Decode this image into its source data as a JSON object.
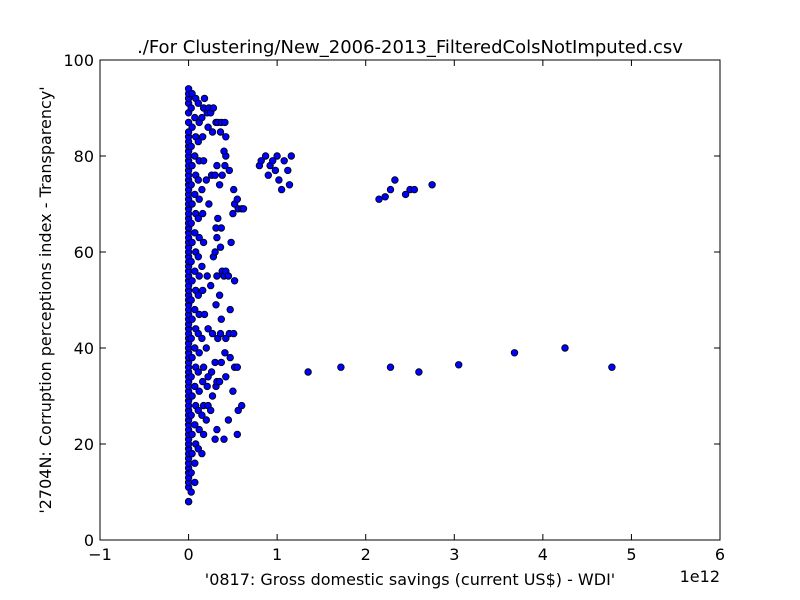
{
  "chart_data": {
    "type": "scatter",
    "title": "./For Clustering/New_2006-2013_FilteredColsNotImputed.csv",
    "xlabel": "'0817: Gross domestic savings  (current US$) - WDI'",
    "ylabel": "'2704N: Corruption perceptions index - Transparency'",
    "x_offset_label": "1e12",
    "xlim": [
      -1,
      6
    ],
    "ylim": [
      0,
      100
    ],
    "x_ticks": [
      -1,
      0,
      1,
      2,
      3,
      4,
      5,
      6
    ],
    "x_tick_labels": [
      "−1",
      "0",
      "1",
      "2",
      "3",
      "4",
      "5",
      "6"
    ],
    "y_ticks": [
      0,
      20,
      40,
      60,
      80,
      100
    ],
    "y_tick_labels": [
      "0",
      "20",
      "40",
      "60",
      "80",
      "100"
    ],
    "grid": false,
    "marker_color": "#0000ff",
    "marker_edge": "#000000",
    "points": [
      [
        0.0,
        8
      ],
      [
        0.0,
        8
      ],
      [
        0.0,
        11
      ],
      [
        0.0,
        12
      ],
      [
        0.0,
        13
      ],
      [
        0.0,
        14
      ],
      [
        0.0,
        15
      ],
      [
        0.0,
        16
      ],
      [
        0.0,
        17
      ],
      [
        0.0,
        18
      ],
      [
        0.0,
        19
      ],
      [
        0.0,
        20
      ],
      [
        0.0,
        21
      ],
      [
        0.0,
        22
      ],
      [
        0.0,
        23
      ],
      [
        0.0,
        24
      ],
      [
        0.0,
        25
      ],
      [
        0.0,
        26
      ],
      [
        0.0,
        27
      ],
      [
        0.0,
        28
      ],
      [
        0.0,
        29
      ],
      [
        0.0,
        30
      ],
      [
        0.0,
        31
      ],
      [
        0.0,
        32
      ],
      [
        0.0,
        33
      ],
      [
        0.0,
        34
      ],
      [
        0.0,
        35
      ],
      [
        0.0,
        36
      ],
      [
        0.0,
        37
      ],
      [
        0.0,
        38
      ],
      [
        0.0,
        39
      ],
      [
        0.0,
        40
      ],
      [
        0.0,
        41
      ],
      [
        0.0,
        42
      ],
      [
        0.0,
        43
      ],
      [
        0.0,
        44
      ],
      [
        0.0,
        45
      ],
      [
        0.0,
        46
      ],
      [
        0.0,
        47
      ],
      [
        0.0,
        48
      ],
      [
        0.0,
        49
      ],
      [
        0.0,
        50
      ],
      [
        0.0,
        51
      ],
      [
        0.0,
        52
      ],
      [
        0.0,
        53
      ],
      [
        0.0,
        54
      ],
      [
        0.0,
        55
      ],
      [
        0.0,
        56
      ],
      [
        0.0,
        57
      ],
      [
        0.0,
        58
      ],
      [
        0.0,
        59
      ],
      [
        0.0,
        60
      ],
      [
        0.0,
        61
      ],
      [
        0.0,
        62
      ],
      [
        0.0,
        63
      ],
      [
        0.0,
        64
      ],
      [
        0.0,
        65
      ],
      [
        0.0,
        66
      ],
      [
        0.0,
        67
      ],
      [
        0.0,
        68
      ],
      [
        0.0,
        69
      ],
      [
        0.0,
        70
      ],
      [
        0.0,
        71
      ],
      [
        0.0,
        72
      ],
      [
        0.0,
        73
      ],
      [
        0.0,
        74
      ],
      [
        0.0,
        75
      ],
      [
        0.0,
        76
      ],
      [
        0.0,
        77
      ],
      [
        0.0,
        78
      ],
      [
        0.0,
        79
      ],
      [
        0.0,
        80
      ],
      [
        0.0,
        81
      ],
      [
        0.0,
        82
      ],
      [
        0.0,
        83
      ],
      [
        0.0,
        84
      ],
      [
        0.0,
        85
      ],
      [
        0.0,
        87
      ],
      [
        0.0,
        89
      ],
      [
        0.0,
        91
      ],
      [
        0.0,
        92
      ],
      [
        0.0,
        93
      ],
      [
        0.0,
        94
      ],
      [
        0.03,
        10
      ],
      [
        0.03,
        14
      ],
      [
        0.04,
        18
      ],
      [
        0.04,
        22
      ],
      [
        0.03,
        26
      ],
      [
        0.04,
        30
      ],
      [
        0.03,
        34
      ],
      [
        0.04,
        38
      ],
      [
        0.03,
        42
      ],
      [
        0.04,
        46
      ],
      [
        0.03,
        50
      ],
      [
        0.04,
        54
      ],
      [
        0.03,
        58
      ],
      [
        0.04,
        62
      ],
      [
        0.03,
        66
      ],
      [
        0.04,
        70
      ],
      [
        0.03,
        74
      ],
      [
        0.04,
        78
      ],
      [
        0.03,
        82
      ],
      [
        0.04,
        86
      ],
      [
        0.03,
        90
      ],
      [
        0.04,
        93
      ],
      [
        0.07,
        12
      ],
      [
        0.07,
        16
      ],
      [
        0.08,
        20
      ],
      [
        0.07,
        24
      ],
      [
        0.08,
        28
      ],
      [
        0.07,
        32
      ],
      [
        0.08,
        36
      ],
      [
        0.07,
        40
      ],
      [
        0.08,
        44
      ],
      [
        0.07,
        48
      ],
      [
        0.08,
        52
      ],
      [
        0.07,
        56
      ],
      [
        0.08,
        60
      ],
      [
        0.07,
        64
      ],
      [
        0.08,
        68
      ],
      [
        0.07,
        72
      ],
      [
        0.08,
        76
      ],
      [
        0.07,
        80
      ],
      [
        0.08,
        84
      ],
      [
        0.07,
        88
      ],
      [
        0.08,
        92
      ],
      [
        0.11,
        19
      ],
      [
        0.12,
        23
      ],
      [
        0.11,
        27
      ],
      [
        0.12,
        31
      ],
      [
        0.11,
        35
      ],
      [
        0.12,
        39
      ],
      [
        0.11,
        43
      ],
      [
        0.12,
        47
      ],
      [
        0.11,
        51
      ],
      [
        0.12,
        55
      ],
      [
        0.11,
        59
      ],
      [
        0.12,
        63
      ],
      [
        0.11,
        67
      ],
      [
        0.12,
        71
      ],
      [
        0.11,
        75
      ],
      [
        0.12,
        79
      ],
      [
        0.11,
        83
      ],
      [
        0.12,
        87
      ],
      [
        0.11,
        91
      ],
      [
        0.15,
        18
      ],
      [
        0.17,
        22
      ],
      [
        0.15,
        26
      ],
      [
        0.17,
        28
      ],
      [
        0.16,
        33
      ],
      [
        0.17,
        36
      ],
      [
        0.15,
        42
      ],
      [
        0.18,
        47
      ],
      [
        0.16,
        52
      ],
      [
        0.15,
        57
      ],
      [
        0.17,
        62
      ],
      [
        0.16,
        68
      ],
      [
        0.15,
        73
      ],
      [
        0.17,
        79
      ],
      [
        0.16,
        84
      ],
      [
        0.15,
        88
      ],
      [
        0.17,
        90
      ],
      [
        0.18,
        92
      ],
      [
        0.2,
        25
      ],
      [
        0.22,
        28
      ],
      [
        0.21,
        32
      ],
      [
        0.22,
        34
      ],
      [
        0.2,
        40
      ],
      [
        0.22,
        44
      ],
      [
        0.21,
        55
      ],
      [
        0.23,
        70
      ],
      [
        0.2,
        75
      ],
      [
        0.22,
        86
      ],
      [
        0.21,
        89
      ],
      [
        0.23,
        90
      ],
      [
        0.25,
        27
      ],
      [
        0.27,
        30
      ],
      [
        0.26,
        35
      ],
      [
        0.27,
        43
      ],
      [
        0.25,
        53
      ],
      [
        0.28,
        59
      ],
      [
        0.26,
        76
      ],
      [
        0.27,
        85
      ],
      [
        0.25,
        89
      ],
      [
        0.28,
        90
      ],
      [
        0.3,
        21
      ],
      [
        0.32,
        23
      ],
      [
        0.31,
        32
      ],
      [
        0.32,
        33
      ],
      [
        0.3,
        37
      ],
      [
        0.33,
        42
      ],
      [
        0.31,
        49
      ],
      [
        0.32,
        55
      ],
      [
        0.3,
        60
      ],
      [
        0.32,
        63
      ],
      [
        0.31,
        65
      ],
      [
        0.33,
        67
      ],
      [
        0.3,
        76
      ],
      [
        0.32,
        78
      ],
      [
        0.31,
        87
      ],
      [
        0.33,
        87
      ],
      [
        0.35,
        33
      ],
      [
        0.37,
        37
      ],
      [
        0.36,
        43
      ],
      [
        0.37,
        46
      ],
      [
        0.35,
        51
      ],
      [
        0.38,
        56
      ],
      [
        0.36,
        61
      ],
      [
        0.37,
        65
      ],
      [
        0.35,
        74
      ],
      [
        0.38,
        76
      ],
      [
        0.36,
        85
      ],
      [
        0.37,
        87
      ],
      [
        0.4,
        21
      ],
      [
        0.42,
        34
      ],
      [
        0.41,
        39
      ],
      [
        0.42,
        42
      ],
      [
        0.4,
        55
      ],
      [
        0.42,
        56
      ],
      [
        0.41,
        78
      ],
      [
        0.42,
        80
      ],
      [
        0.4,
        81
      ],
      [
        0.42,
        84
      ],
      [
        0.41,
        87
      ],
      [
        0.45,
        25
      ],
      [
        0.47,
        38
      ],
      [
        0.46,
        43
      ],
      [
        0.47,
        48
      ],
      [
        0.45,
        55
      ],
      [
        0.48,
        62
      ],
      [
        0.46,
        77
      ],
      [
        0.5,
        31
      ],
      [
        0.52,
        36
      ],
      [
        0.51,
        43
      ],
      [
        0.52,
        54
      ],
      [
        0.5,
        68
      ],
      [
        0.52,
        70
      ],
      [
        0.51,
        73
      ],
      [
        0.55,
        22
      ],
      [
        0.56,
        27
      ],
      [
        0.55,
        36
      ],
      [
        0.56,
        69
      ],
      [
        0.55,
        71
      ],
      [
        0.6,
        28
      ],
      [
        0.6,
        69
      ],
      [
        0.62,
        69
      ],
      [
        0.8,
        78
      ],
      [
        0.82,
        79
      ],
      [
        0.87,
        80
      ],
      [
        0.9,
        76
      ],
      [
        0.92,
        78
      ],
      [
        0.95,
        79
      ],
      [
        0.98,
        77
      ],
      [
        1.0,
        80
      ],
      [
        1.02,
        75
      ],
      [
        1.05,
        73
      ],
      [
        1.08,
        79
      ],
      [
        1.12,
        77
      ],
      [
        1.14,
        74
      ],
      [
        1.16,
        80
      ],
      [
        2.15,
        71
      ],
      [
        2.22,
        71.5
      ],
      [
        2.28,
        73
      ],
      [
        2.33,
        75
      ],
      [
        2.45,
        72
      ],
      [
        2.5,
        73
      ],
      [
        2.55,
        73
      ],
      [
        2.75,
        74
      ],
      [
        1.35,
        35
      ],
      [
        1.72,
        36
      ],
      [
        2.28,
        36
      ],
      [
        2.6,
        35
      ],
      [
        3.05,
        36.5
      ],
      [
        3.68,
        39
      ],
      [
        4.25,
        40
      ],
      [
        4.78,
        36
      ]
    ]
  }
}
